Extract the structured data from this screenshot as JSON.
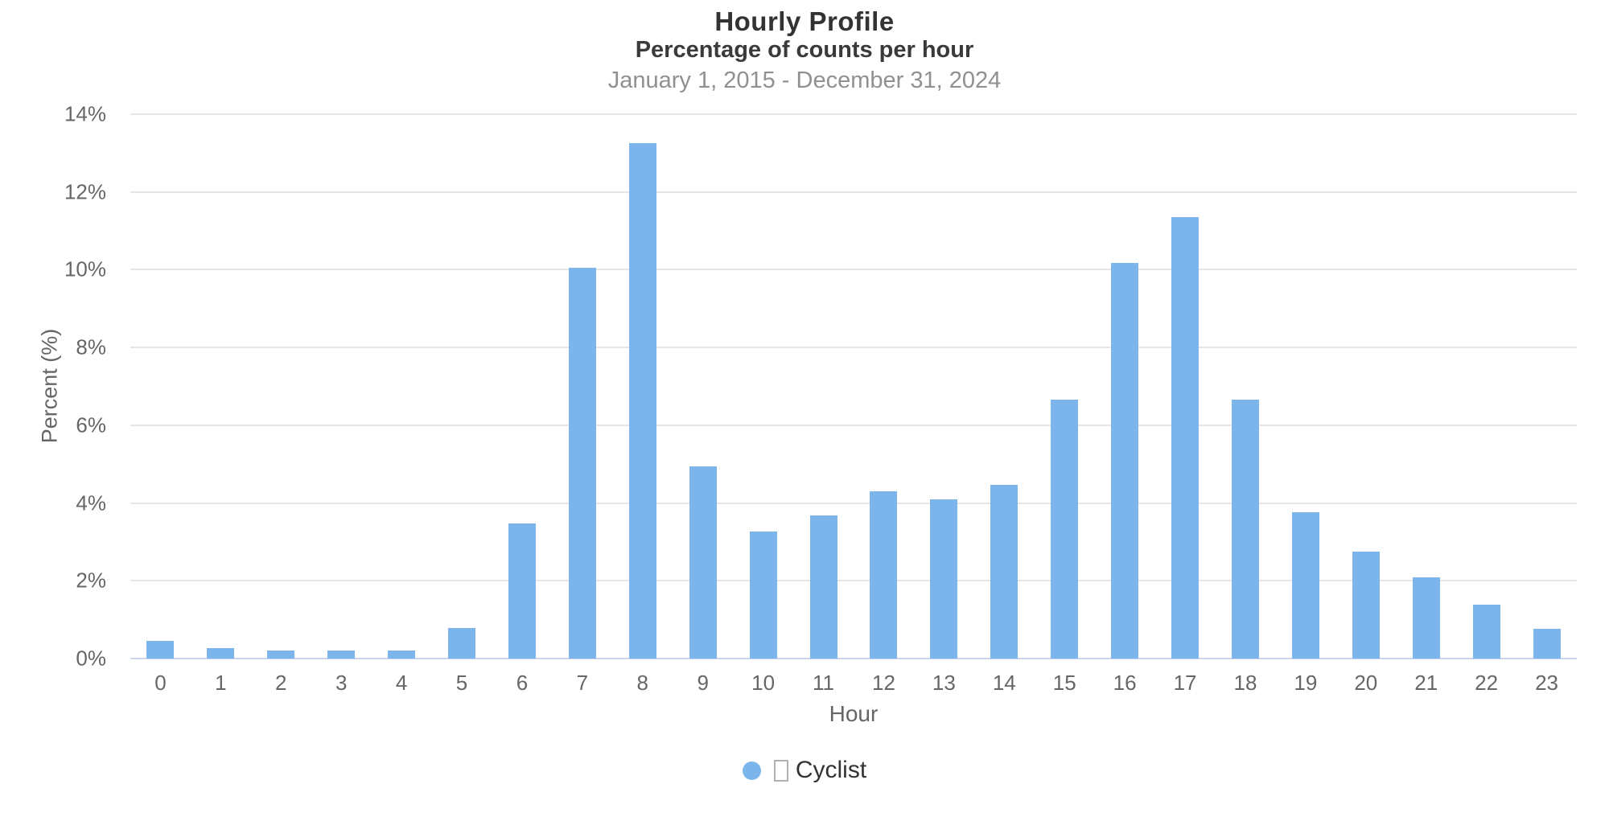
{
  "chart_data": {
    "type": "bar",
    "title": "Hourly Profile",
    "subtitle": "Percentage of counts per hour",
    "date_range": "January 1, 2015 - December 31, 2024",
    "xlabel": "Hour",
    "ylabel": "Percent (%)",
    "categories": [
      "0",
      "1",
      "2",
      "3",
      "4",
      "5",
      "6",
      "7",
      "8",
      "9",
      "10",
      "11",
      "12",
      "13",
      "14",
      "15",
      "16",
      "17",
      "18",
      "19",
      "20",
      "21",
      "22",
      "23"
    ],
    "series": [
      {
        "name": "Cyclist",
        "color": "#7cb5ec",
        "values": [
          0.45,
          0.27,
          0.2,
          0.2,
          0.2,
          0.78,
          3.47,
          10.05,
          13.25,
          4.95,
          3.27,
          3.68,
          4.3,
          4.1,
          4.46,
          6.65,
          10.18,
          11.35,
          6.65,
          3.76,
          2.75,
          2.08,
          1.39,
          0.77
        ]
      }
    ],
    "ylim": [
      0,
      14
    ],
    "ytick_labels": [
      "0%",
      "2%",
      "4%",
      "6%",
      "8%",
      "10%",
      "12%",
      "14%"
    ],
    "ytick_values": [
      0,
      2,
      4,
      6,
      8,
      10,
      12,
      14
    ],
    "grid": true,
    "legend_position": "bottom",
    "legend": {
      "marker_shape": "circle",
      "marker_color": "#7cb5ec",
      "missing_glyph_before_label": "□",
      "label": "Cyclist"
    },
    "colors": {
      "bar": "#7cb5ec",
      "gridline": "#e6e6e6",
      "axis_line": "#ccd6eb",
      "title_text": "#333333",
      "muted_text": "#909090",
      "tick_text": "#666666"
    }
  }
}
